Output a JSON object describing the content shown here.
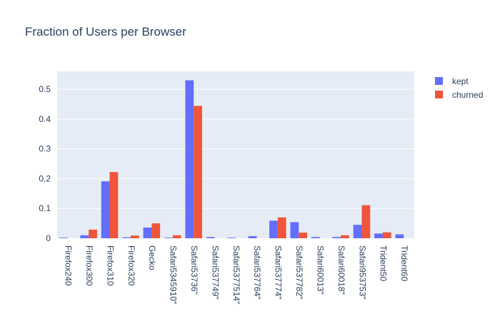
{
  "chart_data": {
    "type": "bar",
    "title": "Fraction of Users per Browser",
    "xlabel": "",
    "ylabel": "",
    "ylim": [
      0,
      0.56
    ],
    "yticks": [
      0,
      0.1,
      0.2,
      0.3,
      0.4,
      0.5
    ],
    "ytick_labels": [
      "0",
      "0.1",
      "0.2",
      "0.3",
      "0.4",
      "0.5"
    ],
    "legend_position": "top-right",
    "grid": true,
    "categories": [
      "Firefox240",
      "Firefox300",
      "Firefox310",
      "Firefox320",
      "Gecko",
      "Safari5345910\"",
      "Safari53736\"",
      "Safari537749\"",
      "Safari5377514\"",
      "Safari537764\"",
      "Safari537774\"",
      "Safari537782\"",
      "Safari60013\"",
      "Safari60018\"",
      "Safari953753\"",
      "Trident50",
      "Trident60"
    ],
    "series": [
      {
        "name": "kept",
        "color": "#636efa",
        "values": [
          0.002,
          0.01,
          0.191,
          0.003,
          0.036,
          0.002,
          0.53,
          0.004,
          0.002,
          0.007,
          0.059,
          0.054,
          0.004,
          0.004,
          0.045,
          0.016,
          0.013
        ]
      },
      {
        "name": "churned",
        "color": "#ef553b",
        "values": [
          0,
          0.029,
          0.222,
          0.009,
          0.05,
          0.01,
          0.444,
          0,
          0,
          0,
          0.07,
          0.019,
          0,
          0.01,
          0.111,
          0.02,
          0
        ]
      }
    ]
  }
}
